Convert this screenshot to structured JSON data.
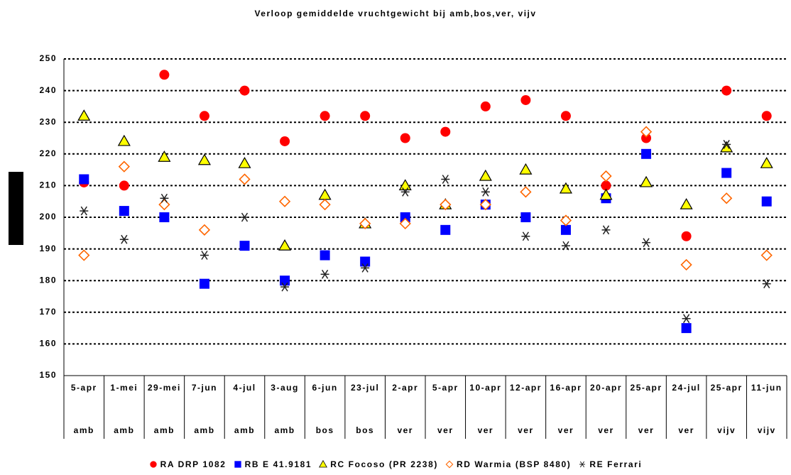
{
  "chart_data": {
    "type": "scatter",
    "title": "Verloop gemiddelde vruchtgewicht bij amb,bos,ver, vijv",
    "categories": [
      "5-apr",
      "1-mei",
      "29-mei",
      "7-jun",
      "4-jul",
      "3-aug",
      "6-jun",
      "23-jul",
      "2-apr",
      "5-apr",
      "10-apr",
      "12-apr",
      "16-apr",
      "20-apr",
      "25-apr",
      "24-jul",
      "25-apr",
      "11-jun"
    ],
    "locations": [
      "amb",
      "amb",
      "amb",
      "amb",
      "amb",
      "amb",
      "bos",
      "bos",
      "ver",
      "ver",
      "ver",
      "ver",
      "ver",
      "ver",
      "ver",
      "ver",
      "vijv",
      "vijv"
    ],
    "ylim": [
      150,
      250
    ],
    "yticks": [
      150,
      160,
      170,
      180,
      190,
      200,
      210,
      220,
      230,
      240,
      250
    ],
    "grid": true,
    "legend": "bottom",
    "series": [
      {
        "name": "RA DRP 1082",
        "marker": "circle",
        "color": "#ff0000",
        "values": [
          211,
          210,
          245,
          232,
          240,
          224,
          232,
          232,
          225,
          227,
          235,
          237,
          232,
          210,
          225,
          194,
          240,
          232
        ]
      },
      {
        "name": "RB E 41.9181",
        "marker": "square",
        "color": "#0000ff",
        "values": [
          212,
          202,
          200,
          179,
          191,
          180,
          188,
          186,
          200,
          196,
          204,
          200,
          196,
          206,
          220,
          165,
          214,
          205
        ]
      },
      {
        "name": "RC Focoso (PR 2238)",
        "marker": "triangle",
        "color": "#ffff00",
        "values": [
          232,
          224,
          219,
          218,
          217,
          191,
          207,
          198,
          210,
          204,
          213,
          215,
          209,
          207,
          211,
          204,
          222,
          217
        ]
      },
      {
        "name": "RD Warmia (BSP 8480)",
        "marker": "diamond",
        "color": "#ff6600",
        "values": [
          188,
          216,
          204,
          196,
          212,
          205,
          204,
          198,
          198,
          204,
          204,
          208,
          199,
          213,
          227,
          185,
          206,
          188
        ]
      },
      {
        "name": "RE Ferrari",
        "marker": "asterisk",
        "color": "#222222",
        "values": [
          202,
          193,
          206,
          188,
          200,
          178,
          182,
          184,
          208,
          212,
          208,
          194,
          191,
          196,
          192,
          168,
          223,
          179
        ]
      }
    ]
  }
}
